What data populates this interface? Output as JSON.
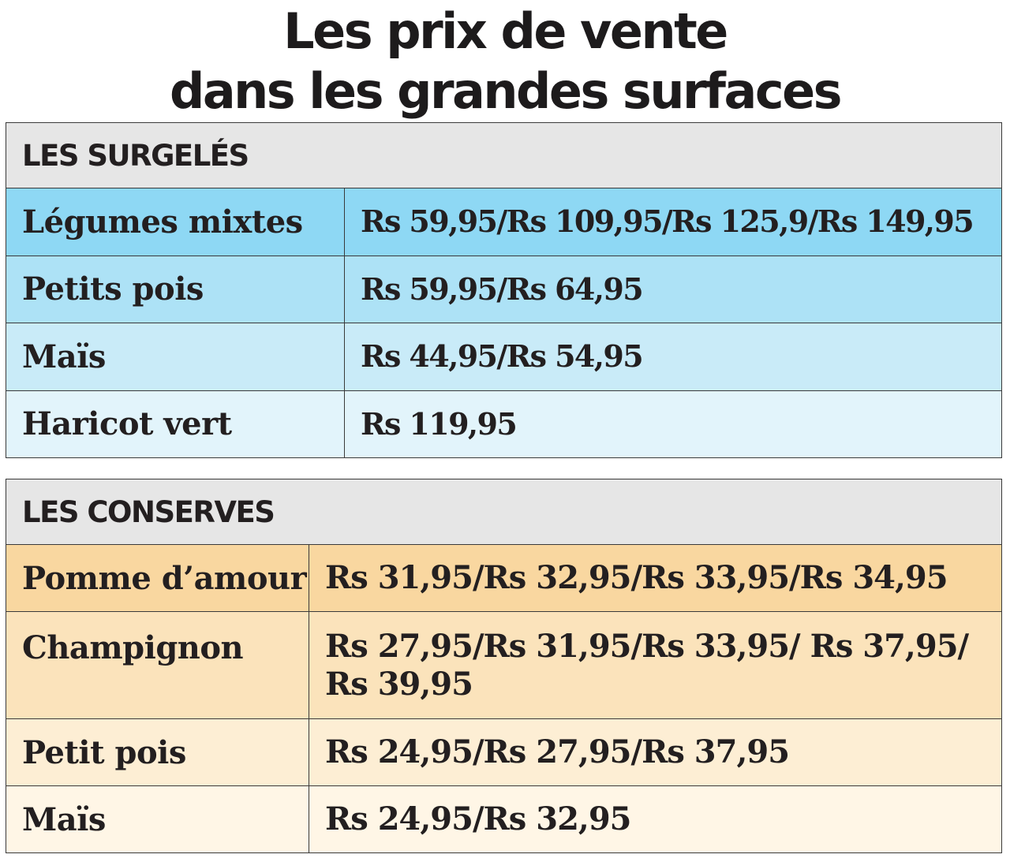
{
  "title": {
    "line1": "Les prix de vente",
    "line2": "dans les grandes surfaces"
  },
  "surgeles": {
    "heading": "LES SURGELÉS",
    "rows": [
      {
        "product": "Légumes mixtes",
        "prices": "Rs 59,95/Rs 109,95/Rs 125,9/Rs 149,95"
      },
      {
        "product": "Petits pois",
        "prices": "Rs 59,95/Rs 64,95"
      },
      {
        "product": "Maïs",
        "prices": "Rs 44,95/Rs 54,95"
      },
      {
        "product": "Haricot vert",
        "prices": "Rs 119,95"
      }
    ]
  },
  "conserves": {
    "heading": "LES CONSERVES",
    "rows": [
      {
        "product": "Pomme d’amour",
        "prices": "Rs 31,95/Rs 32,95/Rs 33,95/Rs 34,95"
      },
      {
        "product": "Champignon",
        "prices": "Rs 27,95/Rs 31,95/Rs 33,95/ Rs 37,95/ Rs 39,95"
      },
      {
        "product": "Petit pois",
        "prices": "Rs 24,95/Rs 27,95/Rs 37,95"
      },
      {
        "product": "Maïs",
        "prices": "Rs 24,95/Rs 32,95"
      }
    ]
  },
  "colors": {
    "surgeles_rows": [
      "#8ed8f4",
      "#ade2f6",
      "#c9ebf8",
      "#e2f4fb"
    ],
    "conserves_rows": [
      "#f9d7a0",
      "#fbe3bb",
      "#fdeed4",
      "#fff6e6"
    ],
    "heading_bg": "#e6e6e6"
  }
}
